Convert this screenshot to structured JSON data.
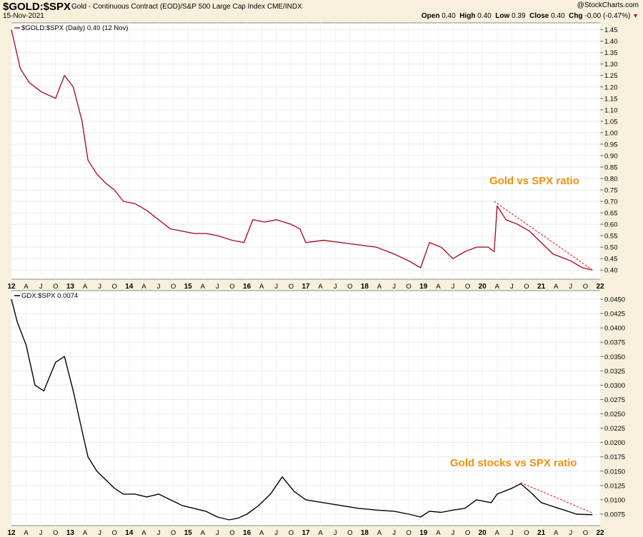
{
  "header": {
    "symbol": "$GOLD:$SPX",
    "description": "Gold - Continuous Contract (EOD)/S&P 500 Large Cap Index  CME/INDX",
    "brand": "@StockCharts.com",
    "date": "15-Nov-2021",
    "open_label": "Open",
    "open": "0.40",
    "high_label": "High",
    "high": "0.40",
    "low_label": "Low",
    "low": "0.39",
    "close_label": "Close",
    "close": "0.40",
    "chg_label": "Chg",
    "chg": "-0.00 (-0.47%)"
  },
  "colors": {
    "top_line": "#b0102c",
    "bottom_line": "#000000",
    "trend": "#e03030",
    "annotation": "#f09010",
    "background": "#f7f0dc",
    "panel": "#ffffff"
  },
  "x_axis_ticks": [
    "12",
    "A",
    "J",
    "O",
    "13",
    "A",
    "J",
    "O",
    "14",
    "A",
    "J",
    "O",
    "15",
    "A",
    "J",
    "O",
    "16",
    "A",
    "J",
    "O",
    "17",
    "A",
    "J",
    "O",
    "18",
    "A",
    "J",
    "O",
    "19",
    "A",
    "J",
    "O",
    "20",
    "A",
    "J",
    "O",
    "21",
    "A",
    "J",
    "O",
    "22"
  ],
  "chart_data": [
    {
      "type": "line",
      "legend": "$GOLD:$SPX (Daily) 0.40 (12 Nov)",
      "annotation": "Gold vs SPX ratio",
      "ylim": [
        0.36,
        1.48
      ],
      "yticks": [
        "1.45",
        "1.40",
        "1.35",
        "1.30",
        "1.25",
        "1.20",
        "1.15",
        "1.10",
        "1.05",
        "1.00",
        "0.95",
        "0.90",
        "0.85",
        "0.80",
        "0.75",
        "0.70",
        "0.65",
        "0.60",
        "0.55",
        "0.50",
        "0.45",
        "0.40"
      ],
      "x": [
        2012.0,
        2012.15,
        2012.3,
        2012.5,
        2012.75,
        2012.9,
        2013.05,
        2013.2,
        2013.3,
        2013.45,
        2013.6,
        2013.75,
        2013.9,
        2014.1,
        2014.3,
        2014.5,
        2014.7,
        2014.9,
        2015.1,
        2015.3,
        2015.5,
        2015.75,
        2015.95,
        2016.1,
        2016.3,
        2016.5,
        2016.75,
        2016.9,
        2017.0,
        2017.3,
        2017.6,
        2017.9,
        2018.2,
        2018.5,
        2018.75,
        2018.95,
        2019.1,
        2019.3,
        2019.5,
        2019.7,
        2019.9,
        2020.1,
        2020.2,
        2020.25,
        2020.4,
        2020.6,
        2020.8,
        2021.0,
        2021.2,
        2021.5,
        2021.7,
        2021.87
      ],
      "y": [
        1.45,
        1.28,
        1.22,
        1.18,
        1.15,
        1.25,
        1.2,
        1.05,
        0.88,
        0.82,
        0.78,
        0.75,
        0.7,
        0.69,
        0.66,
        0.62,
        0.58,
        0.57,
        0.56,
        0.56,
        0.55,
        0.53,
        0.52,
        0.62,
        0.61,
        0.62,
        0.6,
        0.58,
        0.52,
        0.53,
        0.52,
        0.51,
        0.5,
        0.47,
        0.44,
        0.41,
        0.52,
        0.5,
        0.45,
        0.48,
        0.5,
        0.5,
        0.48,
        0.68,
        0.62,
        0.6,
        0.57,
        0.52,
        0.47,
        0.44,
        0.41,
        0.4
      ],
      "trendline": {
        "x": [
          2020.2,
          2021.87
        ],
        "y": [
          0.7,
          0.4
        ]
      }
    },
    {
      "type": "line",
      "legend": "GDX:$SPX 0.0074",
      "annotation": "Gold stocks vs SPX ratio",
      "ylim": [
        0.0055,
        0.0465
      ],
      "yticks": [
        "0.0450",
        "0.0425",
        "0.0400",
        "0.0375",
        "0.0350",
        "0.0325",
        "0.0300",
        "0.0275",
        "0.0250",
        "0.0225",
        "0.0200",
        "0.0175",
        "0.0150",
        "0.0125",
        "0.0100",
        "0.0075"
      ],
      "x": [
        2012.0,
        2012.1,
        2012.25,
        2012.4,
        2012.55,
        2012.75,
        2012.9,
        2013.05,
        2013.2,
        2013.3,
        2013.45,
        2013.6,
        2013.75,
        2013.9,
        2014.1,
        2014.3,
        2014.5,
        2014.7,
        2014.9,
        2015.1,
        2015.3,
        2015.5,
        2015.7,
        2015.85,
        2016.0,
        2016.2,
        2016.4,
        2016.6,
        2016.8,
        2017.0,
        2017.3,
        2017.6,
        2017.9,
        2018.2,
        2018.5,
        2018.75,
        2018.95,
        2019.1,
        2019.3,
        2019.5,
        2019.7,
        2019.9,
        2020.15,
        2020.25,
        2020.5,
        2020.65,
        2020.8,
        2021.0,
        2021.3,
        2021.6,
        2021.87
      ],
      "y": [
        0.045,
        0.041,
        0.037,
        0.03,
        0.029,
        0.034,
        0.035,
        0.029,
        0.022,
        0.0175,
        0.015,
        0.0135,
        0.012,
        0.011,
        0.011,
        0.0105,
        0.011,
        0.01,
        0.009,
        0.0085,
        0.008,
        0.007,
        0.0065,
        0.0068,
        0.0075,
        0.009,
        0.011,
        0.014,
        0.0115,
        0.01,
        0.0095,
        0.009,
        0.0085,
        0.0082,
        0.008,
        0.0075,
        0.007,
        0.008,
        0.0078,
        0.0082,
        0.0085,
        0.01,
        0.0095,
        0.011,
        0.012,
        0.0128,
        0.0115,
        0.0095,
        0.0085,
        0.0075,
        0.0074
      ],
      "trendline": {
        "x": [
          2020.65,
          2021.87
        ],
        "y": [
          0.013,
          0.0077
        ]
      }
    }
  ]
}
